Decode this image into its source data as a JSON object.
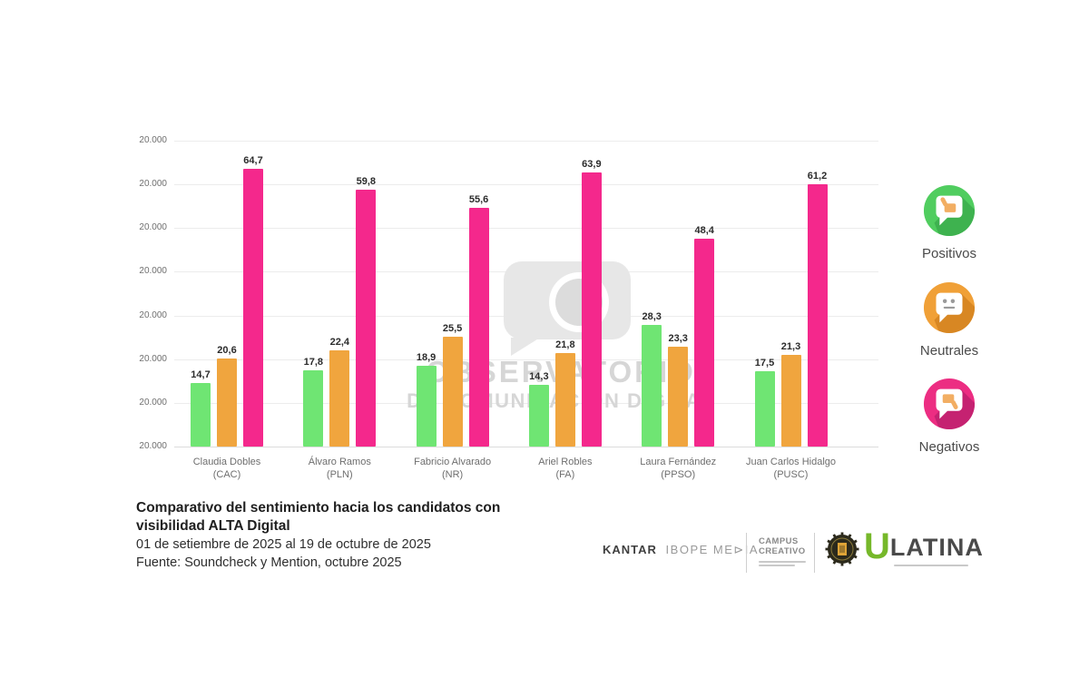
{
  "watermark": {
    "line1": "OBSERVATORIO",
    "line2": "DE COMUNICACIÓN DIGITAL"
  },
  "chart_data": {
    "type": "bar",
    "title": "Comparativo del sentimiento hacia los candidatos con visibilidad ALTA Digital",
    "categories": [
      {
        "name": "Claudia Dobles",
        "party": "(CAC)"
      },
      {
        "name": "Álvaro Ramos",
        "party": "(PLN)"
      },
      {
        "name": "Fabricio Alvarado",
        "party": "(NR)"
      },
      {
        "name": "Ariel Robles",
        "party": "(FA)"
      },
      {
        "name": "Laura Fernández",
        "party": "(PPSO)"
      },
      {
        "name": "Juan Carlos Hidalgo",
        "party": "(PUSC)"
      }
    ],
    "series": [
      {
        "name": "Positivos",
        "color": "#6FE573",
        "values": [
          14.7,
          17.8,
          18.9,
          14.3,
          28.3,
          17.5
        ]
      },
      {
        "name": "Neutrales",
        "color": "#F0A53E",
        "values": [
          20.6,
          22.4,
          25.5,
          21.8,
          23.3,
          21.3
        ]
      },
      {
        "name": "Negativos",
        "color": "#F4288C",
        "values": [
          64.7,
          59.8,
          55.6,
          63.9,
          48.4,
          61.2
        ]
      }
    ],
    "y_tick_labels": [
      "20.000",
      "20.000",
      "20.000",
      "20.000",
      "20.000",
      "20.000",
      "20.000",
      "20.000"
    ],
    "ylim": [
      0,
      71.2
    ],
    "grid": true,
    "legend_position": "right",
    "value_label_decimal_separator": ","
  },
  "legend": {
    "items": [
      {
        "label": "Positivos",
        "icon": "thumb-up-bubble",
        "color": "#50CD5F",
        "shadow": "#38A84A"
      },
      {
        "label": "Neutrales",
        "icon": "neutral-face-bubble",
        "color": "#F0A037",
        "shadow": "#D07F1E"
      },
      {
        "label": "Negativos",
        "icon": "thumb-down-bubble",
        "color": "#EC2D82",
        "shadow": "#B81F6B"
      }
    ]
  },
  "caption": {
    "title_line1": "Comparativo del sentimiento hacia los candidatos con",
    "title_line2": "visibilidad ALTA Digital",
    "period": "01 de setiembre de 2025 al 19 de octubre de 2025",
    "source": "Fuente: Soundcheck y Mention, octubre 2025"
  },
  "footer_logos": {
    "kantar_bold": "KANTAR",
    "kantar_light": "IBOPE ME⊳IA",
    "campus_line1": "CAMPUS",
    "campus_line2": "CREATIVO",
    "ulatina_u": "U",
    "ulatina_rest": "LATINA"
  },
  "colors": {
    "positive_bar": "#6FE573",
    "neutral_bar": "#F0A53E",
    "negative_bar": "#F4288C",
    "ulatina_green": "#76B82A",
    "badge_gold": "#DFA437"
  }
}
